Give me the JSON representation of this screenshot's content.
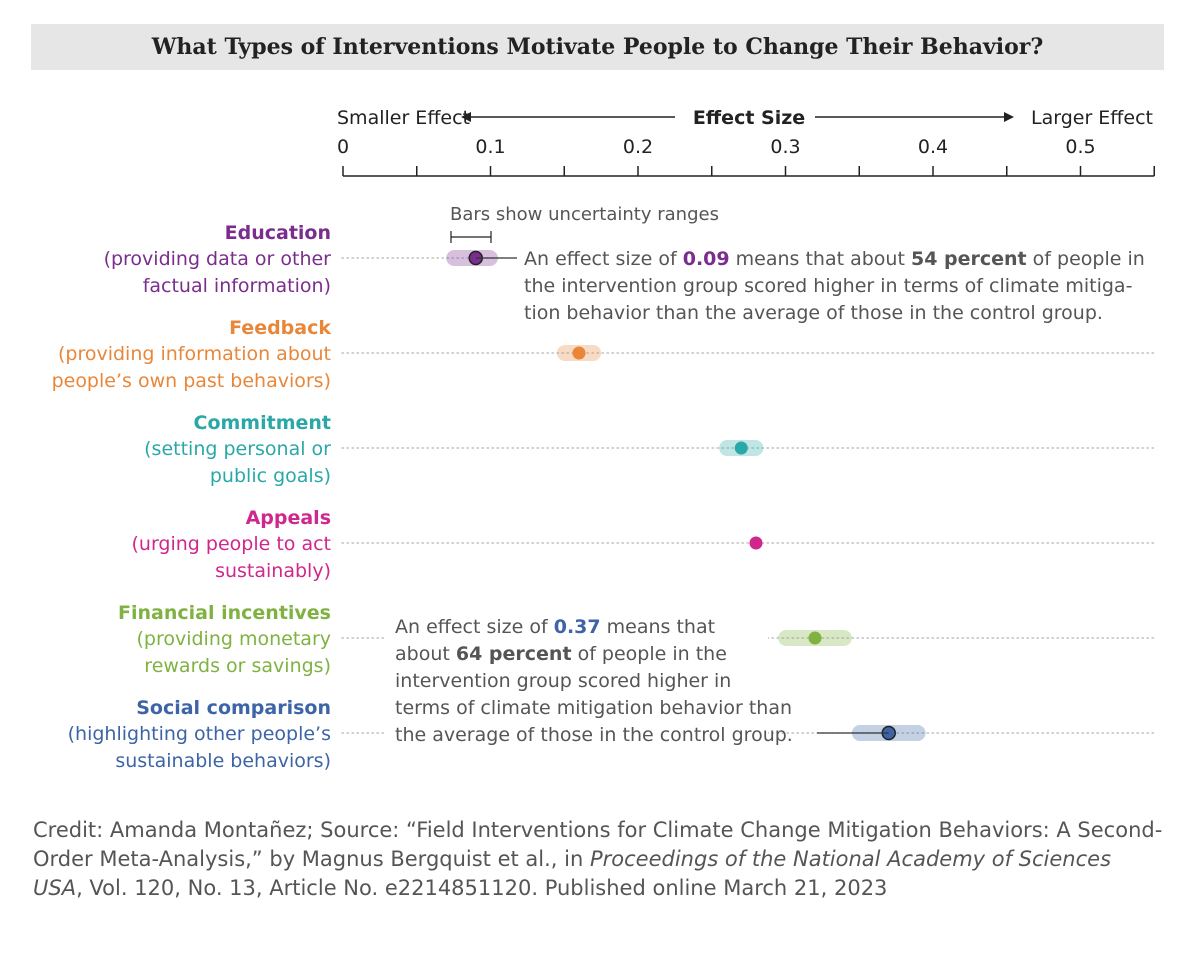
{
  "title": "What Types of Interventions Motivate People to Change Their Behavior?",
  "colors": {
    "education": "#7b2d8e",
    "feedback": "#e8873a",
    "commitment": "#2aa8a8",
    "appeals": "#d0278d",
    "financial": "#7fb241",
    "social": "#3d64a6",
    "text_gray": "#555555",
    "axis": "#222222"
  },
  "chart_data": {
    "type": "scatter",
    "subtype": "dot plot with uncertainty ranges",
    "axis": {
      "left_label": "Smaller Effect",
      "center_label": "Effect Size",
      "right_label": "Larger Effect",
      "xlim": [
        0,
        0.55
      ],
      "ticks": [
        0,
        0.1,
        0.2,
        0.3,
        0.4,
        0.5
      ],
      "tick_labels": [
        "0",
        "0.1",
        "0.2",
        "0.3",
        "0.4",
        "0.5"
      ],
      "minor_ticks": [
        0.05,
        0.15,
        0.25,
        0.35,
        0.45,
        0.55
      ]
    },
    "uncertainty_legend": "Bars show uncertainty ranges",
    "categories": [
      {
        "key": "education",
        "name": "Education",
        "desc": [
          "(providing data or other",
          "factual information)"
        ],
        "value": 0.09,
        "low": 0.07,
        "high": 0.105
      },
      {
        "key": "feedback",
        "name": "Feedback",
        "desc": [
          "(providing information about",
          "people’s own past behaviors)"
        ],
        "value": 0.16,
        "low": 0.145,
        "high": 0.175
      },
      {
        "key": "commitment",
        "name": "Commitment",
        "desc": [
          "(setting personal or",
          "public goals)"
        ],
        "value": 0.27,
        "low": 0.255,
        "high": 0.285
      },
      {
        "key": "appeals",
        "name": "Appeals",
        "desc": [
          "(urging people to act",
          "sustainably)"
        ],
        "value": 0.28,
        "low": null,
        "high": null
      },
      {
        "key": "financial",
        "name": "Financial incentives",
        "desc": [
          "(providing monetary",
          "rewards or savings)"
        ],
        "value": 0.32,
        "low": 0.295,
        "high": 0.345
      },
      {
        "key": "social",
        "name": "Social comparison",
        "desc": [
          "(highlighting other people’s",
          "sustainable behaviors)"
        ],
        "value": 0.37,
        "low": 0.345,
        "high": 0.395
      }
    ],
    "annotations": [
      {
        "target": "education",
        "lines": [
          [
            {
              "t": "An effect size of "
            },
            {
              "t": "0.09",
              "b": true,
              "c": "education"
            },
            {
              "t": " means that about "
            },
            {
              "t": "54 percent",
              "b": true
            },
            {
              "t": " of people in"
            }
          ],
          [
            {
              "t": "the intervention group scored higher in terms of climate mitiga-"
            }
          ],
          [
            {
              "t": "tion behavior than the average of those in the control group."
            }
          ]
        ]
      },
      {
        "target": "social",
        "lines": [
          [
            {
              "t": "An effect size of "
            },
            {
              "t": "0.37",
              "b": true,
              "c": "social"
            },
            {
              "t": " means that"
            }
          ],
          [
            {
              "t": "about "
            },
            {
              "t": "64 percent",
              "b": true
            },
            {
              "t": " of people in the"
            }
          ],
          [
            {
              "t": "intervention group scored higher in"
            }
          ],
          [
            {
              "t": "terms of climate mitigation behavior than"
            }
          ],
          [
            {
              "t": "the average of those in the control group."
            }
          ]
        ]
      }
    ]
  },
  "credit": {
    "part1": "Credit: Amanda Montañez; Source: “Field Interventions for Climate Change Mitigation Behaviors: A Second-Order Meta-Analysis,” by Magnus Bergquist et al., in ",
    "journal": "Proceedings of the National Academy of Sciences USA",
    "part2": ", Vol. 120, No. 13, Article No. e2214851120. Published online March 21, 2023"
  }
}
